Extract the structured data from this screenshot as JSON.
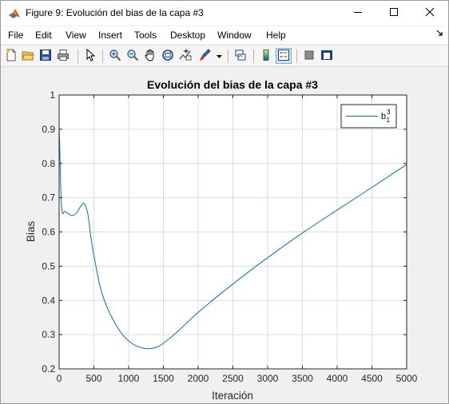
{
  "window": {
    "title": "Figure 9: Evolución del bias de la capa #3",
    "app_icon": "matlab-logo-icon",
    "controls": [
      "minimize-icon",
      "maximize-icon",
      "close-icon"
    ]
  },
  "menu": {
    "items": [
      "File",
      "Edit",
      "View",
      "Insert",
      "Tools",
      "Desktop",
      "Window",
      "Help"
    ],
    "dock_icon": "dock-arrow-icon"
  },
  "toolbar": {
    "buttons": [
      "new-figure-icon",
      "open-file-icon",
      "save-icon",
      "print-icon",
      "edit-plot-arrow-icon",
      "zoom-in-icon",
      "zoom-out-icon",
      "pan-hand-icon",
      "rotate-3d-icon",
      "data-cursor-icon",
      "brush-icon",
      "link-plot-icon",
      "colorbar-icon",
      "legend-icon",
      "hide-plot-tools-icon",
      "show-plot-tools-icon"
    ]
  },
  "chart_data": {
    "type": "line",
    "title": "Evolución del bias de la capa #3",
    "xlabel": "Iteración",
    "ylabel": "Bias",
    "xlim": [
      0,
      5000
    ],
    "ylim": [
      0.2,
      1
    ],
    "xticks": [
      "0",
      "500",
      "1000",
      "1500",
      "2000",
      "2500",
      "3000",
      "3500",
      "4000",
      "4500",
      "5000"
    ],
    "yticks": [
      "0.2",
      "0.3",
      "0.4",
      "0.5",
      "0.6",
      "0.7",
      "0.8",
      "0.9",
      "1"
    ],
    "grid": true,
    "legend": {
      "position": "top-right",
      "entry": "b",
      "superscript": "3",
      "subscript": "1"
    },
    "color": "#0072bd",
    "series": [
      {
        "name": "b₁³",
        "x": [
          0,
          15,
          30,
          50,
          80,
          120,
          180,
          250,
          300,
          350,
          380,
          420,
          460,
          520,
          600,
          700,
          800,
          900,
          1000,
          1100,
          1200,
          1300,
          1400,
          1500,
          1700,
          2000,
          2500,
          3000,
          3500,
          4000,
          4500,
          5000
        ],
        "y": [
          0.91,
          0.8,
          0.69,
          0.655,
          0.66,
          0.655,
          0.648,
          0.655,
          0.672,
          0.683,
          0.677,
          0.645,
          0.58,
          0.51,
          0.432,
          0.375,
          0.335,
          0.303,
          0.282,
          0.268,
          0.261,
          0.259,
          0.263,
          0.275,
          0.308,
          0.365,
          0.448,
          0.525,
          0.597,
          0.664,
          0.73,
          0.797
        ]
      }
    ]
  }
}
